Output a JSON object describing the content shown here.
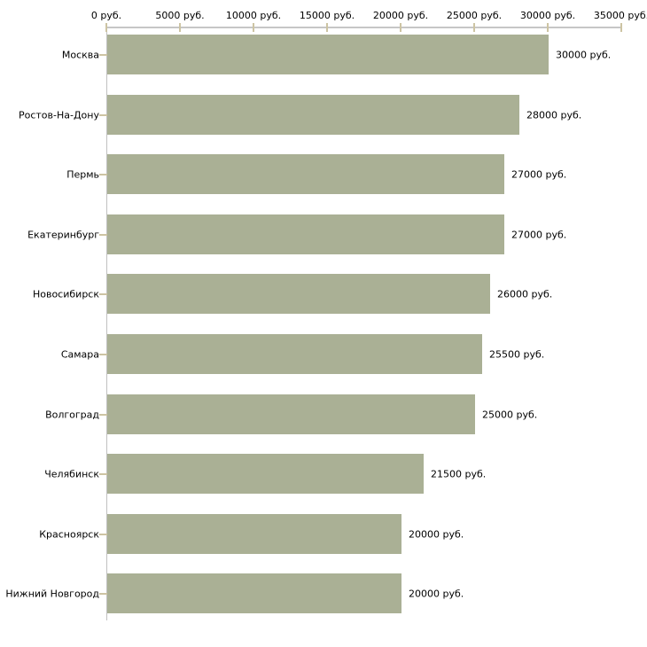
{
  "chart_data": {
    "type": "bar",
    "orientation": "horizontal",
    "unit": "руб.",
    "categories": [
      "Москва",
      "Ростов-На-Дону",
      "Пермь",
      "Екатеринбург",
      "Новосибирск",
      "Самара",
      "Волгоград",
      "Челябинск",
      "Красноярск",
      "Нижний Новгород"
    ],
    "values": [
      30000,
      28000,
      27000,
      27000,
      26000,
      25500,
      25000,
      21500,
      20000,
      20000
    ],
    "bar_labels": [
      "30000 руб.",
      "28000 руб.",
      "27000 руб.",
      "27000 руб.",
      "26000 руб.",
      "25500 руб.",
      "25000 руб.",
      "21500 руб.",
      "20000 руб.",
      "20000 руб."
    ],
    "x_axis": {
      "position": "top",
      "range": [
        0,
        35000
      ],
      "tick_values": [
        0,
        5000,
        10000,
        15000,
        20000,
        25000,
        30000,
        35000
      ],
      "tick_labels": [
        "0 руб.",
        "5000 руб.",
        "10000 руб.",
        "15000 руб.",
        "20000 руб.",
        "25000 руб.",
        "30000 руб.",
        "35000 руб."
      ]
    },
    "grid": false,
    "legend": false,
    "colors": {
      "bar": "#aab095",
      "axis_line": "#c6c6c6",
      "tick_mark": "#cdc4a3",
      "text": "#000000",
      "background": "#ffffff"
    }
  }
}
